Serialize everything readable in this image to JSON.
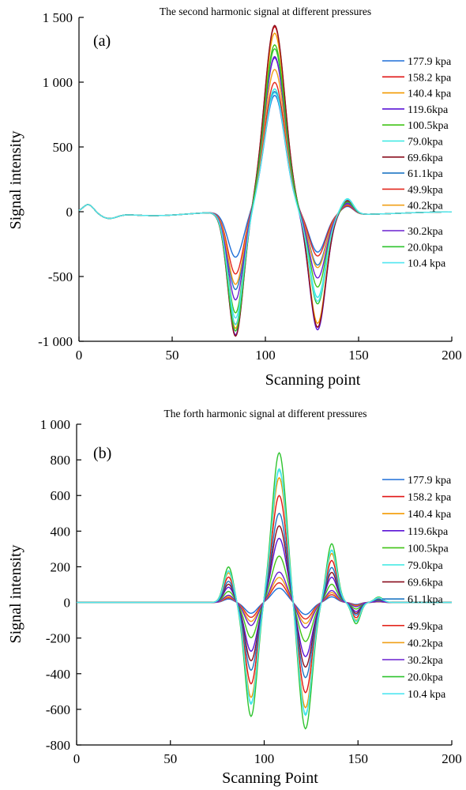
{
  "chart_data": [
    {
      "type": "line",
      "title": "The second harmonic signal at different pressures",
      "panel_label": "(a)",
      "xlabel": "Scanning point",
      "ylabel": "Signal intensity",
      "xlim": [
        0,
        200
      ],
      "ylim": [
        -1000,
        1500
      ],
      "x_ticks": [
        0,
        50,
        100,
        150,
        200
      ],
      "x_tick_labels": [
        "0",
        "50",
        "100",
        "150",
        "200"
      ],
      "y_ticks": [
        1500,
        1000,
        500,
        0,
        -500,
        -1000
      ],
      "y_tick_labels": [
        "1 500",
        "1 000",
        "500",
        "0",
        "-500",
        "-1 000"
      ],
      "grid": false,
      "legend_position": "right",
      "series": [
        {
          "name": "177.9 kpa",
          "color": "#1f6fd8",
          "min1": -350,
          "max": 900,
          "min2": -300,
          "p2": 60
        },
        {
          "name": "158.2 kpa",
          "color": "#e01515",
          "min1": -870,
          "max": 1430,
          "min2": -880,
          "p2": 110
        },
        {
          "name": "140.4 kpa",
          "color": "#f39a00",
          "min1": -900,
          "max": 1380,
          "min2": -850,
          "p2": 100
        },
        {
          "name": "119.6kpa",
          "color": "#5a14d6",
          "min1": -950,
          "max": 1190,
          "min2": -900,
          "p2": 90
        },
        {
          "name": "100.5kpa",
          "color": "#41c417",
          "min1": -780,
          "max": 1290,
          "min2": -570,
          "p2": 70
        },
        {
          "name": "79.0kpa",
          "color": "#38e8e2",
          "min1": -870,
          "max": 950,
          "min2": -650,
          "p2": 120
        },
        {
          "name": "69.6kpa",
          "color": "#8a0f1f",
          "min1": -960,
          "max": 1440,
          "min2": -880,
          "p2": 105
        },
        {
          "name": "61.1kpa",
          "color": "#1f77c4",
          "min1": -600,
          "max": 930,
          "min2": -400,
          "p2": 80
        },
        {
          "name": "49.9kpa",
          "color": "#e3281e",
          "min1": -480,
          "max": 1000,
          "min2": -330,
          "p2": 65
        },
        {
          "name": "40.2kpa",
          "color": "#f0a018",
          "min1": -560,
          "max": 1100,
          "min2": -420,
          "p2": 75
        },
        {
          "name": "30.2kpa",
          "color": "#6a20d0",
          "min1": -680,
          "max": 1200,
          "min2": -500,
          "p2": 80
        },
        {
          "name": "20.0kpa",
          "color": "#2fc42f",
          "min1": -920,
          "max": 1260,
          "min2": -700,
          "p2": 95
        },
        {
          "name": "10.4 kpa",
          "color": "#50e6f0",
          "min1": -820,
          "max": 920,
          "min2": -680,
          "p2": 115
        }
      ]
    },
    {
      "type": "line",
      "title": "The forth harmonic signal at different pressures",
      "panel_label": "(b)",
      "xlabel": "Scanning Point",
      "ylabel": "Signal intensity",
      "xlim": [
        0,
        200
      ],
      "ylim": [
        -800,
        1000
      ],
      "x_ticks": [
        0,
        50,
        100,
        150,
        200
      ],
      "x_tick_labels": [
        "0",
        "50",
        "100",
        "150",
        "200"
      ],
      "y_ticks": [
        1000,
        800,
        600,
        400,
        200,
        0,
        -200,
        -400,
        -600,
        -800
      ],
      "y_tick_labels": [
        "1 000",
        "800",
        "600",
        "400",
        "200",
        "0",
        "-200",
        "-400",
        "-600",
        "-800"
      ],
      "grid": false,
      "legend_position": "right",
      "series": [
        {
          "name": "177.9 kpa",
          "color": "#1f6fd8",
          "amp": 80
        },
        {
          "name": "158.2 kpa",
          "color": "#e01515",
          "amp": 600
        },
        {
          "name": "140.4 kpa",
          "color": "#f39a00",
          "amp": 700
        },
        {
          "name": "119.6kpa",
          "color": "#5a14d6",
          "amp": 360
        },
        {
          "name": "100.5kpa",
          "color": "#41c417",
          "amp": 260
        },
        {
          "name": "79.0kpa",
          "color": "#38e8e2",
          "amp": 750
        },
        {
          "name": "69.6kpa",
          "color": "#8a0f1f",
          "amp": 430
        },
        {
          "name": "61.1kpa",
          "color": "#1f77c4",
          "amp": 500
        },
        {
          "name": "49.9kpa",
          "color": "#e3281e",
          "amp": 110
        },
        {
          "name": "40.2kpa",
          "color": "#f0a018",
          "amp": 140
        },
        {
          "name": "30.2kpa",
          "color": "#6a20d0",
          "amp": 170
        },
        {
          "name": "20.0kpa",
          "color": "#2fc42f",
          "amp": 840
        },
        {
          "name": "10.4 kpa",
          "color": "#50e6f0",
          "amp": 740
        }
      ]
    }
  ]
}
